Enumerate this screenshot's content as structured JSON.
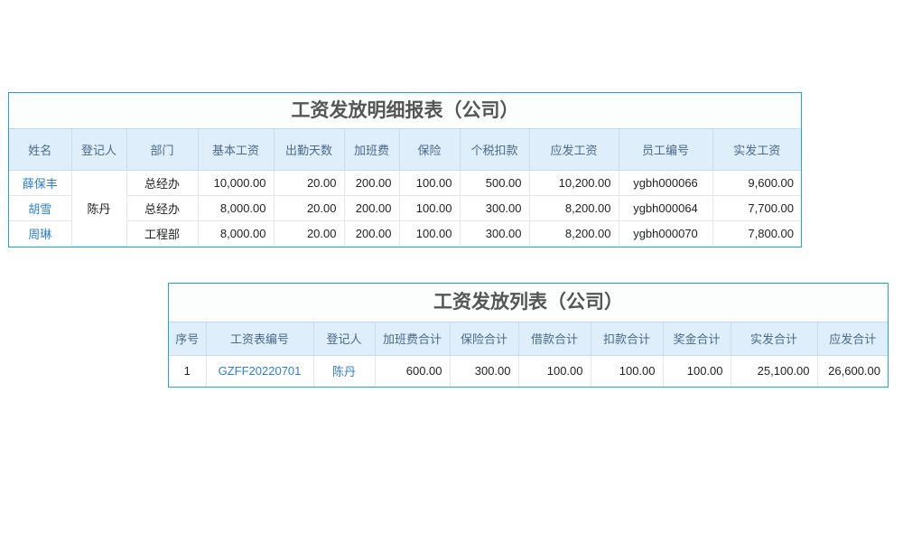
{
  "detail": {
    "title": "工资发放明细报表（公司）",
    "headers": [
      "姓名",
      "登记人",
      "部门",
      "基本工资",
      "出勤天数",
      "加班费",
      "保险",
      "个税扣款",
      "应发工资",
      "员工编号",
      "实发工资"
    ],
    "registrar": "陈丹",
    "rows": [
      [
        "薛保丰",
        "总经办",
        "10,000.00",
        "20.00",
        "200.00",
        "100.00",
        "500.00",
        "10,200.00",
        "ygbh000066",
        "9,600.00"
      ],
      [
        "胡雪",
        "总经办",
        "8,000.00",
        "20.00",
        "200.00",
        "100.00",
        "300.00",
        "8,200.00",
        "ygbh000064",
        "7,700.00"
      ],
      [
        "周琳",
        "工程部",
        "8,000.00",
        "20.00",
        "200.00",
        "100.00",
        "300.00",
        "8,200.00",
        "ygbh000070",
        "7,800.00"
      ]
    ]
  },
  "list": {
    "title": "工资发放列表（公司）",
    "headers": [
      "序号",
      "工资表编号",
      "登记人",
      "加班费合计",
      "保险合计",
      "借款合计",
      "扣款合计",
      "奖金合计",
      "实发合计",
      "应发合计"
    ],
    "rows": [
      [
        "1",
        "GZFF20220701",
        "陈丹",
        "600.00",
        "300.00",
        "100.00",
        "100.00",
        "100.00",
        "25,100.00",
        "26,600.00"
      ]
    ]
  }
}
